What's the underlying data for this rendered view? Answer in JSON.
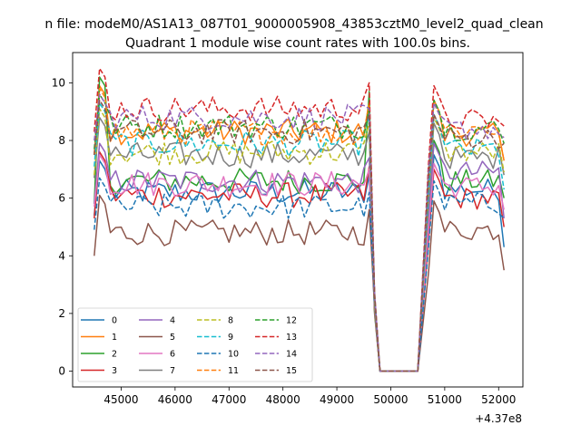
{
  "figure": {
    "suptitle": "n file: modeM0/AS1A13_087T01_9000005908_43853cztM0_level2_quad_clean",
    "title": "Quadrant 1 module wise count rates with 100.0s bins."
  },
  "chart_data": {
    "type": "line",
    "title": "Quadrant 1 module wise count rates with 100.0s bins.",
    "xlabel": "",
    "ylabel": "",
    "xlim": [
      44100,
      52450
    ],
    "ylim": [
      -0.55,
      11.05
    ],
    "x_offset_label": "+4.37e8",
    "x_ticks": [
      45000,
      46000,
      47000,
      48000,
      49000,
      50000,
      51000,
      52000
    ],
    "x_tick_labels": [
      "45000",
      "46000",
      "47000",
      "48000",
      "49000",
      "50000",
      "51000",
      "52000"
    ],
    "y_ticks": [
      0,
      2,
      4,
      6,
      8,
      10
    ],
    "y_tick_labels": [
      "0",
      "2",
      "4",
      "6",
      "8",
      "10"
    ],
    "grid": false,
    "legend_position": "lower-left",
    "gap": [
      49800,
      50550
    ],
    "segment1": [
      44500,
      49600
    ],
    "segment2": [
      50700,
      52100
    ],
    "series": [
      {
        "name": "0",
        "color": "#1f77b4",
        "dash": "solid",
        "level1": 6.2,
        "level2": 6.3,
        "peak1": 7.3,
        "peak2": 7.5,
        "final": 4.3
      },
      {
        "name": "1",
        "color": "#ff7f0e",
        "dash": "solid",
        "level1": 8.3,
        "level2": 8.2,
        "peak1": 9.9,
        "peak2": 9.4,
        "final": 7.3
      },
      {
        "name": "2",
        "color": "#2ca02c",
        "dash": "solid",
        "level1": 6.6,
        "level2": 6.6,
        "peak1": 10.2,
        "peak2": 8.0,
        "final": 6.0
      },
      {
        "name": "3",
        "color": "#d62728",
        "dash": "solid",
        "level1": 6.1,
        "level2": 6.0,
        "peak1": 7.6,
        "peak2": 7.0,
        "final": 5.0
      },
      {
        "name": "4",
        "color": "#9467bd",
        "dash": "solid",
        "level1": 6.6,
        "level2": 6.9,
        "peak1": 7.9,
        "peak2": 7.9,
        "final": 5.3
      },
      {
        "name": "5",
        "color": "#8c564b",
        "dash": "solid",
        "level1": 4.8,
        "level2": 4.9,
        "peak1": 6.1,
        "peak2": 5.9,
        "final": 3.5
      },
      {
        "name": "6",
        "color": "#e377c2",
        "dash": "solid",
        "level1": 6.5,
        "level2": 6.4,
        "peak1": 7.5,
        "peak2": 7.2,
        "final": 5.6
      },
      {
        "name": "7",
        "color": "#7f7f7f",
        "dash": "solid",
        "level1": 7.5,
        "level2": 7.4,
        "peak1": 8.8,
        "peak2": 8.6,
        "final": 6.8
      },
      {
        "name": "8",
        "color": "#bcbd22",
        "dash": "dashed",
        "level1": 7.6,
        "level2": 7.6,
        "peak1": 9.1,
        "peak2": 8.8,
        "final": 6.9
      },
      {
        "name": "9",
        "color": "#17becf",
        "dash": "dashed",
        "level1": 7.9,
        "level2": 7.7,
        "peak1": 9.3,
        "peak2": 8.9,
        "final": 6.3
      },
      {
        "name": "10",
        "color": "#1f77b4",
        "dash": "dashed",
        "level1": 5.7,
        "level2": 5.8,
        "peak1": 6.7,
        "peak2": 6.6,
        "final": 5.3
      },
      {
        "name": "11",
        "color": "#ff7f0e",
        "dash": "dashed",
        "level1": 8.3,
        "level2": 8.4,
        "peak1": 9.8,
        "peak2": 9.3,
        "final": 7.3
      },
      {
        "name": "12",
        "color": "#2ca02c",
        "dash": "dashed",
        "level1": 8.5,
        "level2": 8.4,
        "peak1": 9.6,
        "peak2": 9.4,
        "final": 7.9
      },
      {
        "name": "13",
        "color": "#d62728",
        "dash": "dashed",
        "level1": 9.1,
        "level2": 8.7,
        "peak1": 10.5,
        "peak2": 9.9,
        "final": 8.5
      },
      {
        "name": "14",
        "color": "#9467bd",
        "dash": "dashed",
        "level1": 8.8,
        "level2": 8.4,
        "peak1": 9.6,
        "peak2": 9.3,
        "final": 8.1
      },
      {
        "name": "15",
        "color": "#8c564b",
        "dash": "dashed",
        "level1": 8.3,
        "level2": 8.1,
        "peak1": 9.4,
        "peak2": 8.9,
        "final": 7.9
      }
    ]
  }
}
